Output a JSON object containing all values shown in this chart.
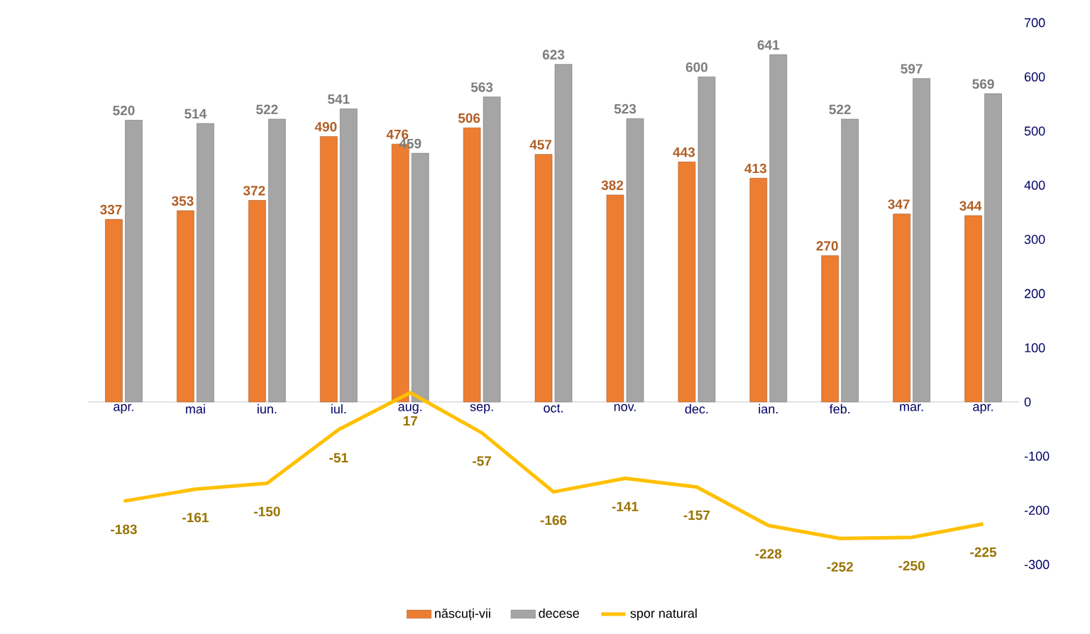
{
  "chart_data": {
    "type": "bar",
    "categories": [
      "apr.",
      "mai",
      "iun.",
      "iul.",
      "aug.",
      "sep.",
      "oct.",
      "nov.",
      "dec.",
      "ian.",
      "feb.",
      "mar.",
      "apr."
    ],
    "series": [
      {
        "name": "născuți-vii",
        "color": "#ed7d31",
        "values": [
          337,
          353,
          372,
          490,
          476,
          506,
          457,
          382,
          443,
          413,
          270,
          347,
          344
        ]
      },
      {
        "name": "decese",
        "color": "#a5a5a5",
        "values": [
          520,
          514,
          522,
          541,
          459,
          563,
          623,
          523,
          600,
          641,
          522,
          597,
          569
        ]
      },
      {
        "name": "spor natural",
        "type": "line",
        "color": "#ffc000",
        "values": [
          -183,
          -161,
          -150,
          -51,
          17,
          -57,
          -166,
          -141,
          -157,
          -228,
          -252,
          -250,
          -225
        ]
      }
    ],
    "ylim": [
      -300,
      700
    ],
    "yticks": [
      -300,
      -200,
      -100,
      0,
      100,
      200,
      300,
      400,
      500,
      600,
      700
    ],
    "data_labels": true,
    "grid": false,
    "legend": "bottom",
    "marker": "none",
    "line_style": "solid"
  }
}
